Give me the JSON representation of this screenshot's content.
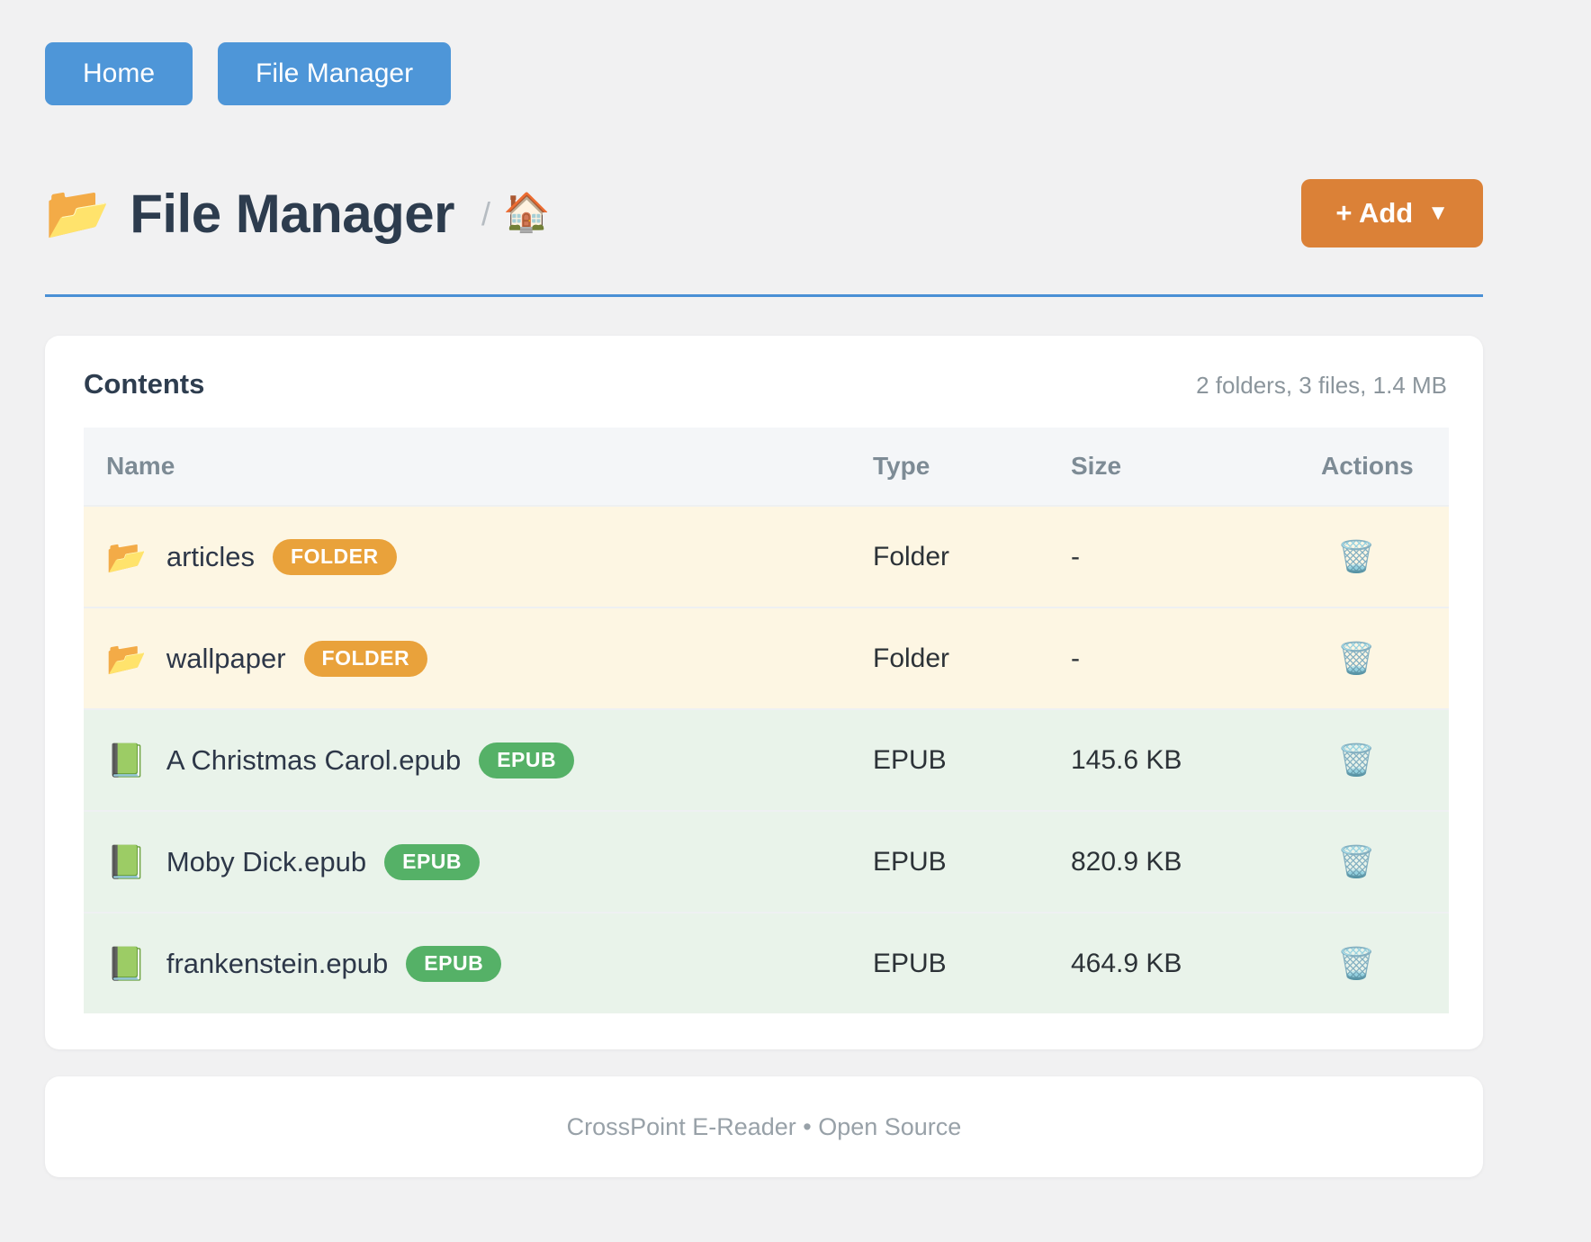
{
  "nav": {
    "home_label": "Home",
    "file_manager_label": "File Manager"
  },
  "header": {
    "title": "File Manager",
    "title_icon": "📂",
    "breadcrumb_separator": "/",
    "breadcrumb_home_icon": "🏠",
    "add_button_label": "+ Add",
    "add_button_caret": "▼"
  },
  "contents_card": {
    "heading": "Contents",
    "summary": "2 folders, 3 files, 1.4 MB"
  },
  "table": {
    "columns": {
      "name": "Name",
      "type": "Type",
      "size": "Size",
      "actions": "Actions"
    },
    "rows": [
      {
        "icon": "📂",
        "name": "articles",
        "badge": "FOLDER",
        "badge_type": "folder",
        "type": "Folder",
        "size": "-",
        "action_icon": "🗑️"
      },
      {
        "icon": "📂",
        "name": "wallpaper",
        "badge": "FOLDER",
        "badge_type": "folder",
        "type": "Folder",
        "size": "-",
        "action_icon": "🗑️"
      },
      {
        "icon": "📗",
        "name": "A Christmas Carol.epub",
        "badge": "EPUB",
        "badge_type": "epub",
        "type": "EPUB",
        "size": "145.6 KB",
        "action_icon": "🗑️"
      },
      {
        "icon": "📗",
        "name": "Moby Dick.epub",
        "badge": "EPUB",
        "badge_type": "epub",
        "type": "EPUB",
        "size": "820.9 KB",
        "action_icon": "🗑️"
      },
      {
        "icon": "📗",
        "name": "frankenstein.epub",
        "badge": "EPUB",
        "badge_type": "epub",
        "type": "EPUB",
        "size": "464.9 KB",
        "action_icon": "🗑️"
      }
    ]
  },
  "footer": {
    "text": "CrossPoint E-Reader • Open Source"
  },
  "colors": {
    "primary_blue": "#4e96d8",
    "rule_blue": "#4a90d5",
    "accent_orange": "#db8137",
    "badge_folder": "#e9a23b",
    "badge_epub": "#55b167",
    "row_folder_bg": "#fdf6e3",
    "row_epub_bg": "#e9f3ea"
  }
}
